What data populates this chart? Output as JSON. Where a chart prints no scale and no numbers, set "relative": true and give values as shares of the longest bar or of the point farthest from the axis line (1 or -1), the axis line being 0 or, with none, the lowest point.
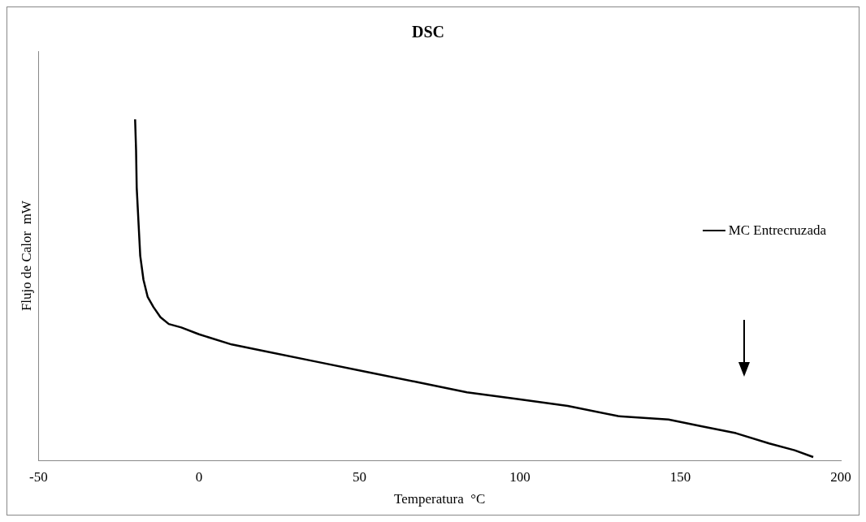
{
  "chart_data": {
    "type": "line",
    "title": "DSC",
    "xlabel": "Temperatura  °C",
    "ylabel": "Flujo de Calor  mW",
    "relative": true,
    "xlim": [
      -50,
      200
    ],
    "xticks": [
      -50,
      0,
      50,
      100,
      150,
      200
    ],
    "tick_labels": "x",
    "grid": false,
    "legend": "right",
    "marker": "none",
    "line_style": "solid",
    "series": [
      {
        "name": "MC Entrecruzada",
        "color": "#000000",
        "x": [
          -19.9,
          -19.6,
          -19.4,
          -18.8,
          -18.3,
          -17.3,
          -16,
          -14.2,
          -12,
          -9.4,
          -5.5,
          0,
          10.2,
          20.7,
          36.4,
          52.1,
          67.8,
          83.5,
          99.2,
          114.9,
          130.6,
          146.3,
          156.8,
          167.3,
          177.7,
          185.6,
          191.4
        ],
        "values": [
          1,
          0.91,
          0.8,
          0.69,
          0.6,
          0.53,
          0.48,
          0.45,
          0.42,
          0.4,
          0.39,
          0.37,
          0.34,
          0.32,
          0.29,
          0.26,
          0.23,
          0.2,
          0.18,
          0.16,
          0.13,
          0.12,
          0.1,
          0.08,
          0.05,
          0.03,
          0.01
        ]
      }
    ]
  }
}
